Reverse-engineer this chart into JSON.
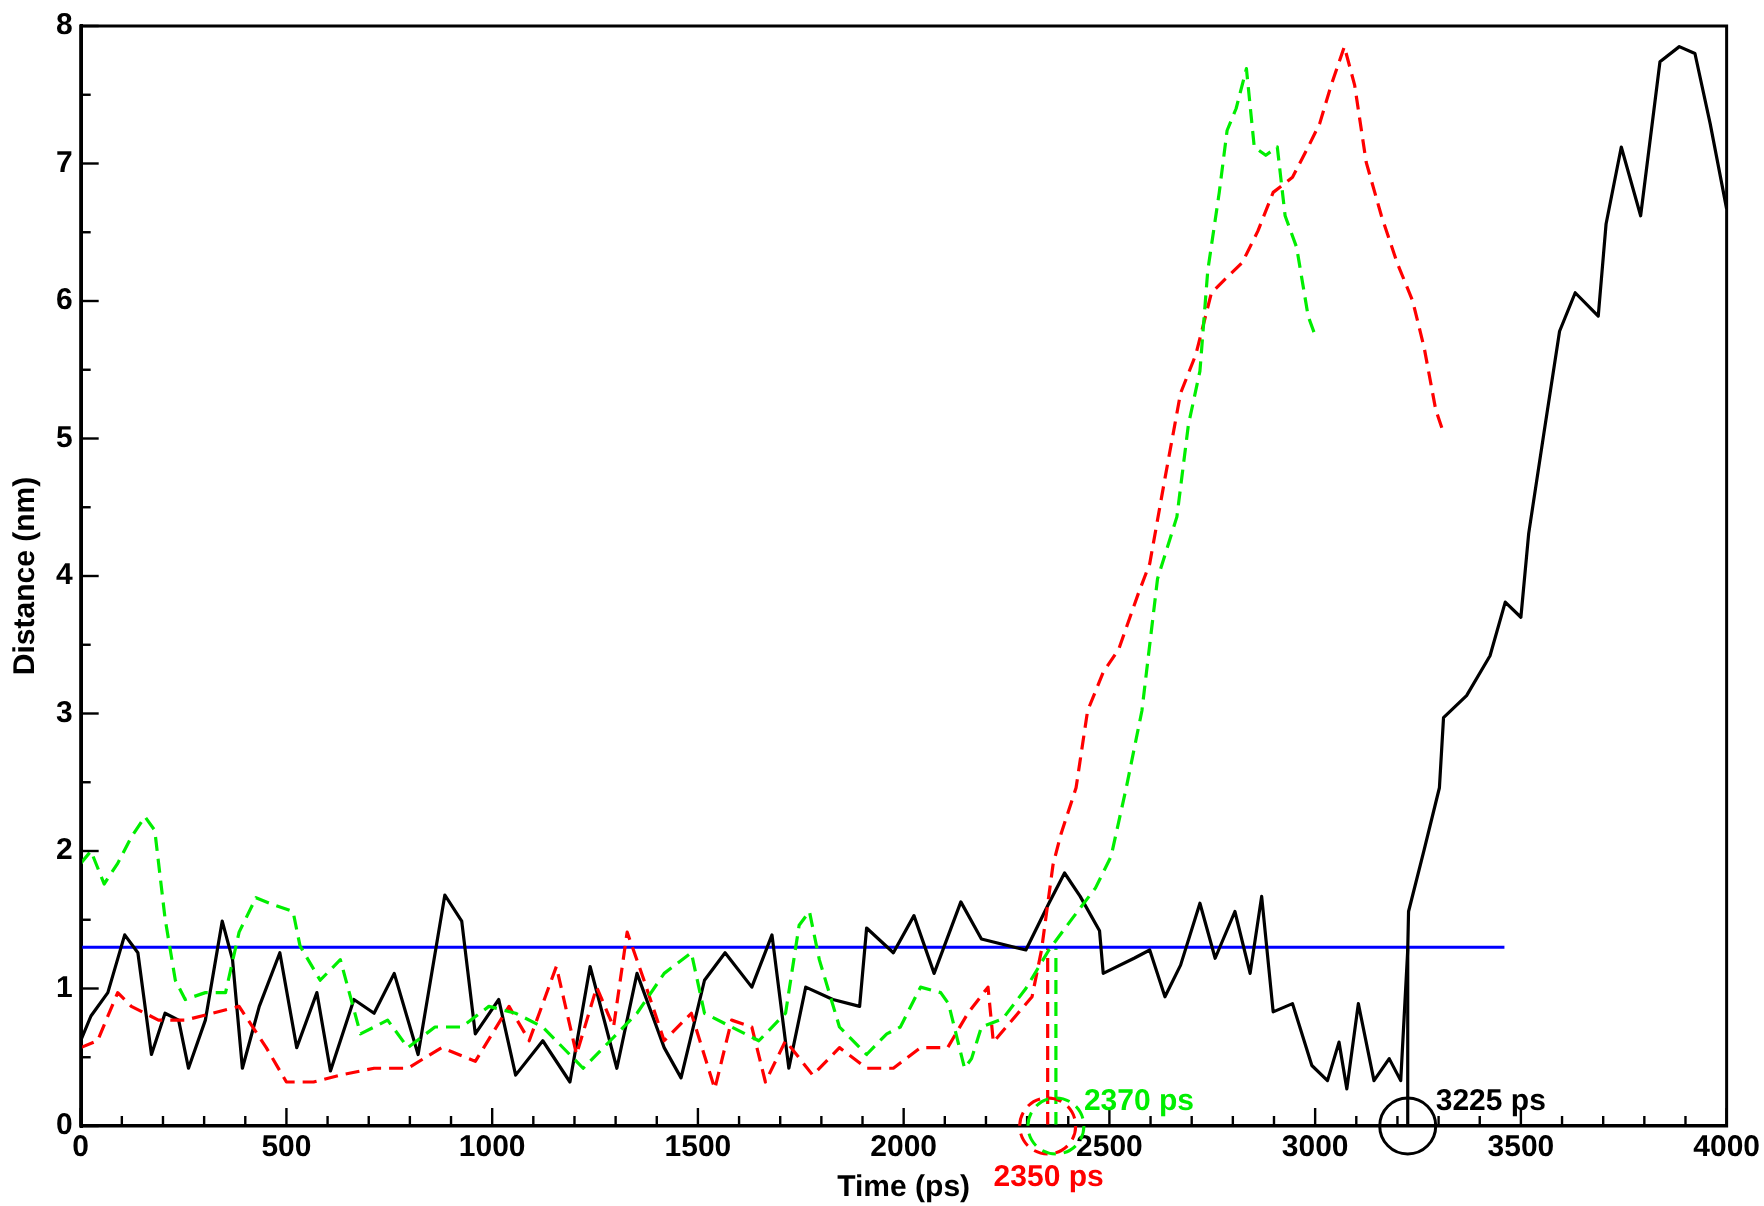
{
  "chart_data": {
    "type": "line",
    "xlabel": "Time (ps)",
    "ylabel": "Distance (nm)",
    "xlim": [
      0,
      4000
    ],
    "ylim": [
      0,
      8
    ],
    "xticks": [
      0,
      {
        "value": 100,
        "label": null
      },
      {
        "value": 200,
        "label": null
      },
      {
        "value": 300,
        "label": null
      },
      {
        "value": 400,
        "label": null
      },
      500,
      {
        "value": 600,
        "label": null
      },
      {
        "value": 700,
        "label": null
      },
      {
        "value": 800,
        "label": null
      },
      {
        "value": 900,
        "label": null
      },
      1000,
      {
        "value": 1100,
        "label": null
      },
      {
        "value": 1200,
        "label": null
      },
      {
        "value": 1300,
        "label": null
      },
      {
        "value": 1400,
        "label": null
      },
      1500,
      {
        "value": 1600,
        "label": null
      },
      {
        "value": 1700,
        "label": null
      },
      {
        "value": 1800,
        "label": null
      },
      {
        "value": 1900,
        "label": null
      },
      2000,
      {
        "value": 2100,
        "label": null
      },
      {
        "value": 2200,
        "label": null
      },
      {
        "value": 2300,
        "label": null
      },
      {
        "value": 2400,
        "label": null
      },
      2500,
      {
        "value": 2600,
        "label": null
      },
      {
        "value": 2700,
        "label": null
      },
      {
        "value": 2800,
        "label": null
      },
      {
        "value": 2900,
        "label": null
      },
      3000,
      {
        "value": 3100,
        "label": null
      },
      {
        "value": 3200,
        "label": null
      },
      {
        "value": 3300,
        "label": null
      },
      {
        "value": 3400,
        "label": null
      },
      3500,
      {
        "value": 3600,
        "label": null
      },
      {
        "value": 3700,
        "label": null
      },
      {
        "value": 3800,
        "label": null
      },
      {
        "value": 3900,
        "label": null
      },
      4000
    ],
    "yticks": [
      0,
      {
        "value": 0.5,
        "label": null
      },
      1,
      {
        "value": 1.5,
        "label": null
      },
      2,
      {
        "value": 2.5,
        "label": null
      },
      3,
      {
        "value": 3.5,
        "label": null
      },
      4,
      {
        "value": 4.5,
        "label": null
      },
      5,
      {
        "value": 5.5,
        "label": null
      },
      6,
      {
        "value": 6.5,
        "label": null
      },
      7,
      {
        "value": 7.5,
        "label": null
      },
      8
    ],
    "grid": false,
    "legend": false,
    "series": [
      {
        "color": "#00ee00",
        "line_style": "dashed",
        "x": [
          0,
          25,
          57,
          90,
          123,
          156,
          180,
          205,
          230,
          254,
          303,
          352,
          385,
          426,
          467,
          516,
          533,
          582,
          631,
          680,
          746,
          795,
          861,
          926,
          992,
          1057,
          1123,
          1221,
          1287,
          1352,
          1418,
          1484,
          1516,
          1582,
          1648,
          1713,
          1746,
          1771,
          1795,
          1844,
          1910,
          1959,
          1992,
          2041,
          2090,
          2109,
          2148,
          2165,
          2189,
          2241,
          2297,
          2353,
          2410,
          2466,
          2504,
          2541,
          2579,
          2617,
          2664,
          2692,
          2720,
          2739,
          2767,
          2786,
          2808,
          2833,
          2852,
          2880,
          2908,
          2927,
          2955,
          2983,
          3000
        ],
        "values": [
          1.91,
          2.0,
          1.76,
          1.91,
          2.1,
          2.25,
          2.15,
          1.51,
          1.06,
          0.92,
          0.97,
          0.97,
          1.41,
          1.66,
          1.61,
          1.56,
          1.31,
          1.06,
          1.21,
          0.67,
          0.77,
          0.57,
          0.72,
          0.72,
          0.87,
          0.82,
          0.72,
          0.42,
          0.62,
          0.82,
          1.11,
          1.26,
          0.82,
          0.72,
          0.62,
          0.82,
          1.46,
          1.56,
          1.21,
          0.72,
          0.52,
          0.67,
          0.72,
          1.01,
          0.97,
          0.89,
          0.42,
          0.49,
          0.72,
          0.78,
          1.0,
          1.28,
          1.51,
          1.73,
          1.96,
          2.46,
          3.02,
          3.98,
          4.43,
          5.1,
          5.49,
          6.22,
          6.79,
          7.24,
          7.4,
          7.69,
          7.12,
          7.06,
          7.12,
          6.62,
          6.39,
          5.89,
          5.75
        ]
      },
      {
        "color": "#ff0000",
        "line_style": "dashed",
        "x": [
          0,
          41,
          90,
          123,
          189,
          254,
          320,
          385,
          451,
          500,
          566,
          631,
          713,
          795,
          877,
          959,
          1041,
          1090,
          1156,
          1205,
          1254,
          1295,
          1328,
          1369,
          1418,
          1484,
          1541,
          1582,
          1631,
          1664,
          1713,
          1779,
          1844,
          1910,
          1975,
          2041,
          2107,
          2156,
          2205,
          2218,
          2312,
          2335,
          2363,
          2382,
          2419,
          2447,
          2485,
          2523,
          2570,
          2598,
          2635,
          2673,
          2710,
          2748,
          2785,
          2823,
          2861,
          2898,
          2945,
          2983,
          3011,
          3039,
          3071,
          3096,
          3124,
          3161,
          3199,
          3237,
          3265,
          3293,
          3312
        ],
        "values": [
          0.57,
          0.62,
          0.97,
          0.87,
          0.77,
          0.77,
          0.82,
          0.87,
          0.57,
          0.32,
          0.32,
          0.37,
          0.42,
          0.42,
          0.57,
          0.47,
          0.87,
          0.62,
          1.16,
          0.52,
          1.01,
          0.72,
          1.41,
          1.06,
          0.62,
          0.82,
          0.27,
          0.77,
          0.72,
          0.32,
          0.62,
          0.37,
          0.57,
          0.42,
          0.42,
          0.57,
          0.57,
          0.82,
          1.01,
          0.61,
          0.94,
          1.28,
          1.9,
          2.12,
          2.46,
          3.02,
          3.3,
          3.47,
          3.87,
          4.09,
          4.71,
          5.33,
          5.61,
          6.06,
          6.17,
          6.28,
          6.51,
          6.79,
          6.9,
          7.12,
          7.29,
          7.57,
          7.85,
          7.57,
          7.01,
          6.62,
          6.28,
          6.0,
          5.66,
          5.21,
          5.04
        ]
      },
      {
        "color": "#000000",
        "line_style": "solid",
        "x": [
          0,
          25,
          66,
          107,
          139,
          172,
          205,
          238,
          262,
          303,
          344,
          369,
          393,
          434,
          484,
          525,
          574,
          607,
          664,
          713,
          762,
          820,
          885,
          926,
          959,
          1016,
          1057,
          1123,
          1189,
          1238,
          1303,
          1352,
          1418,
          1459,
          1516,
          1566,
          1631,
          1680,
          1721,
          1762,
          1828,
          1893,
          1910,
          1975,
          2025,
          2074,
          2139,
          2189,
          2297,
          2353,
          2391,
          2429,
          2476,
          2485,
          2560,
          2598,
          2635,
          2673,
          2720,
          2757,
          2805,
          2842,
          2870,
          2898,
          2945,
          2992,
          3030,
          3058,
          3077,
          3105,
          3143,
          3180,
          3208,
          3225,
          3227,
          3265,
          3302,
          3312,
          3368,
          3425,
          3462,
          3500,
          3519,
          3556,
          3594,
          3632,
          3688,
          3707,
          3744,
          3791,
          3838,
          3885,
          3923,
          3960,
          4000
        ],
        "values": [
          0.62,
          0.8,
          0.97,
          1.39,
          1.26,
          0.52,
          0.82,
          0.77,
          0.42,
          0.77,
          1.49,
          1.21,
          0.42,
          0.87,
          1.26,
          0.57,
          0.97,
          0.4,
          0.92,
          0.82,
          1.11,
          0.52,
          1.68,
          1.49,
          0.67,
          0.92,
          0.37,
          0.62,
          0.32,
          1.16,
          0.42,
          1.11,
          0.57,
          0.35,
          1.06,
          1.26,
          1.01,
          1.39,
          0.42,
          1.01,
          0.92,
          0.87,
          1.44,
          1.26,
          1.53,
          1.11,
          1.63,
          1.36,
          1.28,
          1.62,
          1.84,
          1.67,
          1.42,
          1.11,
          1.22,
          1.28,
          0.94,
          1.17,
          1.62,
          1.22,
          1.56,
          1.11,
          1.67,
          0.83,
          0.89,
          0.44,
          0.33,
          0.61,
          0.27,
          0.89,
          0.33,
          0.49,
          0.33,
          1.28,
          1.56,
          2.01,
          2.46,
          2.97,
          3.13,
          3.42,
          3.81,
          3.7,
          4.31,
          5.04,
          5.78,
          6.06,
          5.89,
          6.56,
          7.12,
          6.62,
          7.74,
          7.85,
          7.8,
          7.29,
          6.67
        ]
      },
      {
        "color": "#0000ff",
        "line_style": "solid",
        "x": [
          0,
          3460
        ],
        "values": [
          1.3,
          1.3
        ]
      },
      {
        "color": "#ff0000",
        "line_style": "dashed",
        "x": [
          2350,
          2350
        ],
        "values": [
          0,
          1.3
        ]
      },
      {
        "color": "#00ee00",
        "line_style": "dashed",
        "x": [
          2370,
          2370
        ],
        "values": [
          0,
          1.3
        ]
      },
      {
        "color": "#000000",
        "line_style": "solid",
        "x": [
          3225,
          3225
        ],
        "values": [
          0,
          1.3
        ]
      }
    ],
    "annotations": [
      {
        "text": "2350 ps",
        "x": 2350,
        "y": 0
      },
      {
        "text": "2370 ps",
        "x": 2370,
        "y": 0
      },
      {
        "text": "3225 ps",
        "x": 3225,
        "y": 0
      }
    ]
  }
}
